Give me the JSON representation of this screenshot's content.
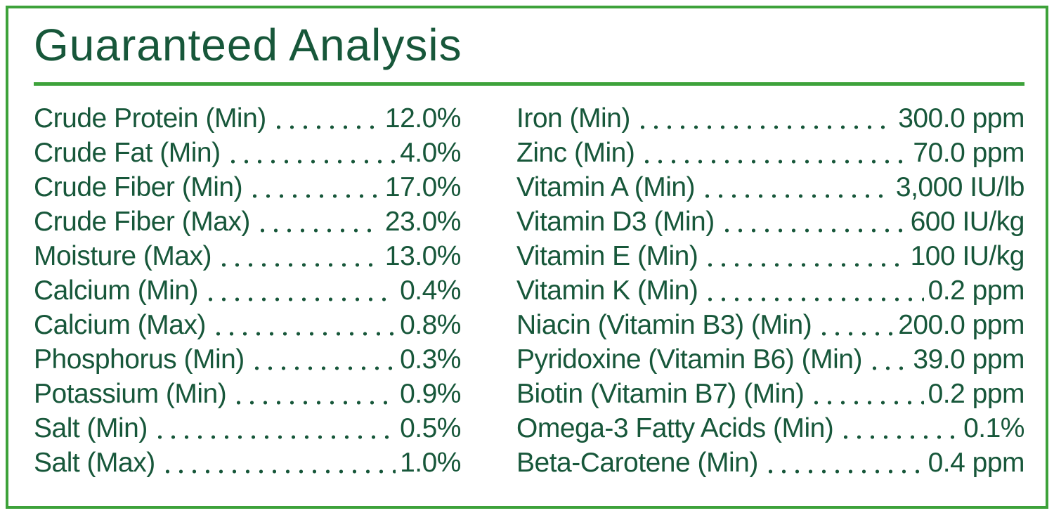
{
  "page": {
    "title": "Guaranteed Analysis"
  },
  "colors": {
    "text_green": "#17573a",
    "accent_green": "#3da23a",
    "background": "#ffffff"
  },
  "table": {
    "left_column": [
      {
        "label": "Crude Protein (Min)",
        "value": "12.0%"
      },
      {
        "label": "Crude Fat (Min)",
        "value": "4.0%"
      },
      {
        "label": "Crude Fiber (Min)",
        "value": "17.0%"
      },
      {
        "label": "Crude Fiber (Max)",
        "value": "23.0%"
      },
      {
        "label": "Moisture (Max)",
        "value": "13.0%"
      },
      {
        "label": "Calcium (Min)",
        "value": "0.4%"
      },
      {
        "label": "Calcium (Max)",
        "value": "0.8%"
      },
      {
        "label": "Phosphorus (Min)",
        "value": "0.3%"
      },
      {
        "label": "Potassium (Min)",
        "value": "0.9%"
      },
      {
        "label": "Salt (Min)",
        "value": "0.5%"
      },
      {
        "label": "Salt (Max)",
        "value": "1.0%"
      }
    ],
    "right_column": [
      {
        "label": "Iron (Min)",
        "value": "300.0 ppm"
      },
      {
        "label": "Zinc (Min)",
        "value": "70.0 ppm"
      },
      {
        "label": "Vitamin A (Min)",
        "value": "3,000 IU/lb"
      },
      {
        "label": "Vitamin D3 (Min)",
        "value": "600 IU/kg"
      },
      {
        "label": "Vitamin E (Min)",
        "value": "100 IU/kg"
      },
      {
        "label": "Vitamin K (Min)",
        "value": "0.2 ppm"
      },
      {
        "label": "Niacin (Vitamin B3) (Min)",
        "value": "200.0 ppm"
      },
      {
        "label": "Pyridoxine (Vitamin B6) (Min)",
        "value": "39.0 ppm"
      },
      {
        "label": "Biotin (Vitamin B7) (Min)",
        "value": "0.2 ppm"
      },
      {
        "label": "Omega-3 Fatty Acids (Min)",
        "value": "0.1%"
      },
      {
        "label": "Beta-Carotene (Min)",
        "value": "0.4 ppm"
      }
    ]
  }
}
